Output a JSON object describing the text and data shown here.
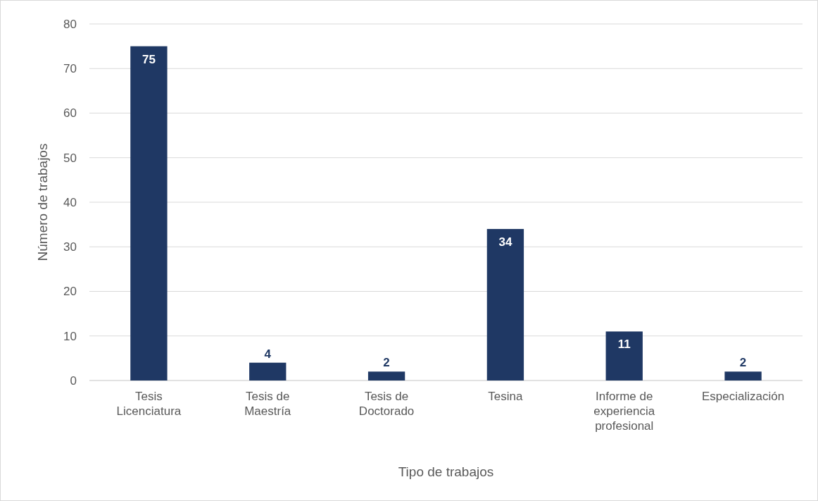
{
  "chart_data": {
    "type": "bar",
    "xlabel": "Tipo de trabajos",
    "ylabel": "Número de trabajos",
    "categories": [
      "Tesis Licenciatura",
      "Tesis de Maestría",
      "Tesis de Doctorado",
      "Tesina",
      "Informe de experiencia profesional",
      "Especialización"
    ],
    "values": [
      75,
      4,
      2,
      34,
      11,
      2
    ],
    "color": "#1f3864",
    "ylim": [
      0,
      80
    ],
    "yticks": [
      0,
      10,
      20,
      30,
      40,
      50,
      60,
      70,
      80
    ],
    "grid": "y",
    "data_labels": true
  }
}
